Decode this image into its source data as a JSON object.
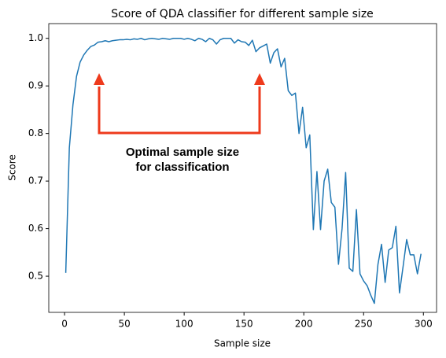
{
  "chart_data": {
    "type": "line",
    "title": "Score of QDA classifier for different sample size",
    "xlabel": "Sample size",
    "ylabel": "Score",
    "color": "#1f77b4",
    "annotation": [
      "Optimal sample size",
      "for classification"
    ],
    "x": [
      1,
      4,
      7,
      10,
      13,
      16,
      19,
      22,
      25,
      28,
      31,
      34,
      37,
      40,
      43,
      46,
      49,
      52,
      55,
      58,
      61,
      64,
      67,
      70,
      73,
      76,
      79,
      82,
      85,
      88,
      91,
      94,
      97,
      100,
      103,
      106,
      109,
      112,
      115,
      118,
      121,
      124,
      127,
      130,
      133,
      136,
      139,
      142,
      145,
      148,
      151,
      154,
      157,
      160,
      163,
      166,
      169,
      172,
      175,
      178,
      181,
      184,
      187,
      190,
      193,
      196,
      199,
      202,
      205,
      208,
      211,
      214,
      217,
      220,
      223,
      226,
      229,
      232,
      235,
      238,
      241,
      244,
      247,
      250,
      253,
      256,
      259,
      262,
      265,
      268,
      271,
      274,
      277,
      280,
      283,
      286,
      289,
      292,
      295,
      298
    ],
    "values": [
      0.507,
      0.77,
      0.86,
      0.92,
      0.95,
      0.965,
      0.975,
      0.983,
      0.986,
      0.992,
      0.993,
      0.995,
      0.993,
      0.995,
      0.996,
      0.997,
      0.997,
      0.998,
      0.997,
      0.999,
      0.998,
      1.0,
      0.997,
      0.999,
      1.0,
      0.999,
      0.998,
      1.0,
      0.999,
      0.998,
      1.0,
      1.0,
      1.0,
      0.998,
      1.0,
      0.998,
      0.995,
      1.0,
      0.998,
      0.993,
      1.0,
      0.997,
      0.988,
      0.997,
      1.0,
      1.0,
      1.0,
      0.99,
      0.997,
      0.993,
      0.992,
      0.985,
      0.996,
      0.972,
      0.98,
      0.984,
      0.988,
      0.948,
      0.97,
      0.978,
      0.94,
      0.958,
      0.89,
      0.88,
      0.885,
      0.8,
      0.855,
      0.77,
      0.797,
      0.598,
      0.72,
      0.598,
      0.7,
      0.725,
      0.655,
      0.645,
      0.525,
      0.6,
      0.718,
      0.517,
      0.51,
      0.64,
      0.505,
      0.49,
      0.48,
      0.46,
      0.443,
      0.525,
      0.567,
      0.487,
      0.555,
      0.56,
      0.605,
      0.465,
      0.52,
      0.577,
      0.545,
      0.545,
      0.505,
      0.547
    ],
    "xlim": [
      -13.2,
      311
    ],
    "ylim": [
      0.424,
      1.031
    ],
    "xticks": [
      0,
      50,
      100,
      150,
      200,
      250,
      300
    ],
    "yticks": [
      0.5,
      0.6,
      0.7,
      0.8,
      0.9,
      {
        "value": 1,
        "label": "1.0"
      }
    ]
  }
}
